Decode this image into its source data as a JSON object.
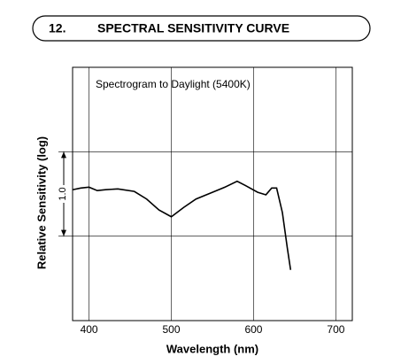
{
  "section": {
    "number": "12.",
    "title": "SPECTRAL SENSITIVITY CURVE"
  },
  "chart_data": {
    "type": "line",
    "annotation": "Spectrogram to Daylight (5400K)",
    "x_label": "Wavelength (nm)",
    "y_label": "Relative Sensitivity (log)",
    "xlim": [
      380,
      720
    ],
    "xticks": [
      400,
      500,
      600,
      700
    ],
    "ylim": [
      0,
      3
    ],
    "ygrid": [
      1,
      2
    ],
    "scale_bar": {
      "value": 1,
      "label": "1.0"
    },
    "grid": true,
    "color": "#000000",
    "x": [
      380,
      390,
      400,
      410,
      420,
      435,
      455,
      470,
      485,
      500,
      515,
      530,
      550,
      565,
      580,
      590,
      605,
      615,
      622,
      628,
      635,
      641,
      645
    ],
    "values": [
      1.55,
      1.57,
      1.58,
      1.54,
      1.55,
      1.56,
      1.53,
      1.44,
      1.31,
      1.23,
      1.34,
      1.44,
      1.52,
      1.58,
      1.65,
      1.6,
      1.52,
      1.49,
      1.57,
      1.57,
      1.28,
      0.86,
      0.6
    ]
  }
}
